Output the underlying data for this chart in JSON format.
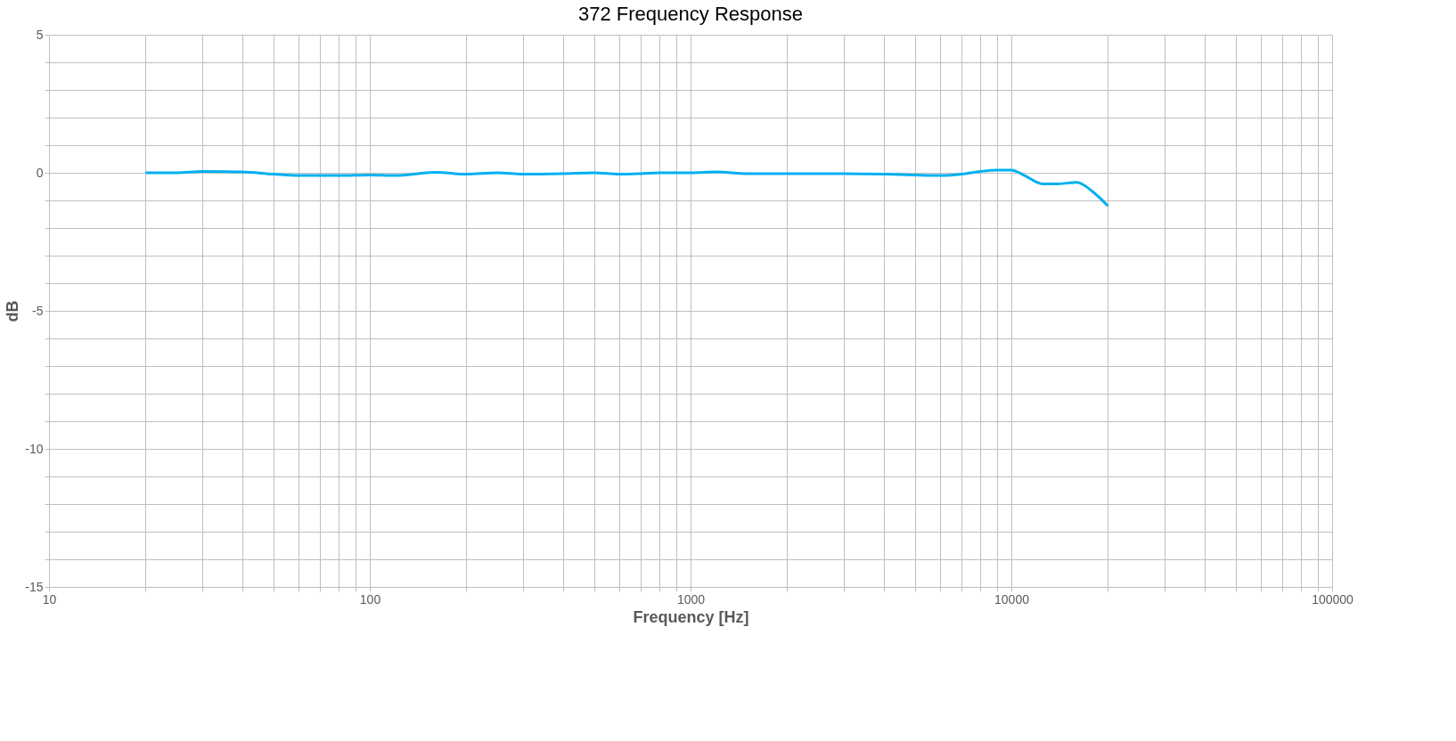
{
  "chart_data": {
    "type": "line",
    "title": "372 Frequency Response",
    "xlabel": "Frequency [Hz]",
    "ylabel": "dB",
    "log": "x",
    "grid": true,
    "marker": "none",
    "line_style": "solid",
    "xlim": [
      10,
      100000
    ],
    "ylim": [
      -15,
      5
    ],
    "xticks": [
      10,
      {
        "value": 20,
        "label": null
      },
      {
        "value": 30,
        "label": null
      },
      {
        "value": 40,
        "label": null
      },
      {
        "value": 50,
        "label": null
      },
      {
        "value": 60,
        "label": null
      },
      {
        "value": 70,
        "label": null
      },
      {
        "value": 80,
        "label": null
      },
      {
        "value": 90,
        "label": null
      },
      100,
      {
        "value": 200,
        "label": null
      },
      {
        "value": 300,
        "label": null
      },
      {
        "value": 400,
        "label": null
      },
      {
        "value": 500,
        "label": null
      },
      {
        "value": 600,
        "label": null
      },
      {
        "value": 700,
        "label": null
      },
      {
        "value": 800,
        "label": null
      },
      {
        "value": 900,
        "label": null
      },
      1000,
      {
        "value": 2000,
        "label": null
      },
      {
        "value": 3000,
        "label": null
      },
      {
        "value": 4000,
        "label": null
      },
      {
        "value": 5000,
        "label": null
      },
      {
        "value": 6000,
        "label": null
      },
      {
        "value": 7000,
        "label": null
      },
      {
        "value": 8000,
        "label": null
      },
      {
        "value": 9000,
        "label": null
      },
      10000,
      {
        "value": 20000,
        "label": null
      },
      {
        "value": 30000,
        "label": null
      },
      {
        "value": 40000,
        "label": null
      },
      {
        "value": 50000,
        "label": null
      },
      {
        "value": 60000,
        "label": null
      },
      {
        "value": 70000,
        "label": null
      },
      {
        "value": 80000,
        "label": null
      },
      {
        "value": 90000,
        "label": null
      },
      100000
    ],
    "yticks": [
      -15,
      {
        "value": -14,
        "label": null
      },
      {
        "value": -13,
        "label": null
      },
      {
        "value": -12,
        "label": null
      },
      {
        "value": -11,
        "label": null
      },
      -10,
      {
        "value": -9,
        "label": null
      },
      {
        "value": -8,
        "label": null
      },
      {
        "value": -7,
        "label": null
      },
      {
        "value": -6,
        "label": null
      },
      -5,
      {
        "value": -4,
        "label": null
      },
      {
        "value": -3,
        "label": null
      },
      {
        "value": -2,
        "label": null
      },
      {
        "value": -1,
        "label": null
      },
      0,
      {
        "value": 1,
        "label": null
      },
      {
        "value": 2,
        "label": null
      },
      {
        "value": 3,
        "label": null
      },
      {
        "value": 4,
        "label": null
      },
      5
    ],
    "x": [
      20,
      25,
      30,
      40,
      50,
      60,
      70,
      80,
      100,
      120,
      150,
      160,
      200,
      250,
      300,
      400,
      500,
      600,
      700,
      800,
      1000,
      1200,
      1500,
      2000,
      3000,
      4000,
      5000,
      6000,
      7000,
      8000,
      9000,
      10000,
      11000,
      12500,
      14000,
      16000,
      18000,
      20000
    ],
    "series": [
      {
        "color": "#00b0f0",
        "values": [
          0,
          0,
          0.05,
          0.03,
          -0.05,
          -0.1,
          -0.1,
          -0.1,
          -0.08,
          -0.1,
          0,
          0.02,
          -0.05,
          0,
          -0.05,
          -0.03,
          0,
          -0.05,
          -0.03,
          0,
          0,
          0.03,
          -0.03,
          -0.03,
          -0.03,
          -0.05,
          -0.08,
          -0.1,
          -0.05,
          0.05,
          0.1,
          0.1,
          -0.1,
          -0.4,
          -0.4,
          -0.35,
          -0.7,
          -1.2
        ]
      }
    ]
  }
}
